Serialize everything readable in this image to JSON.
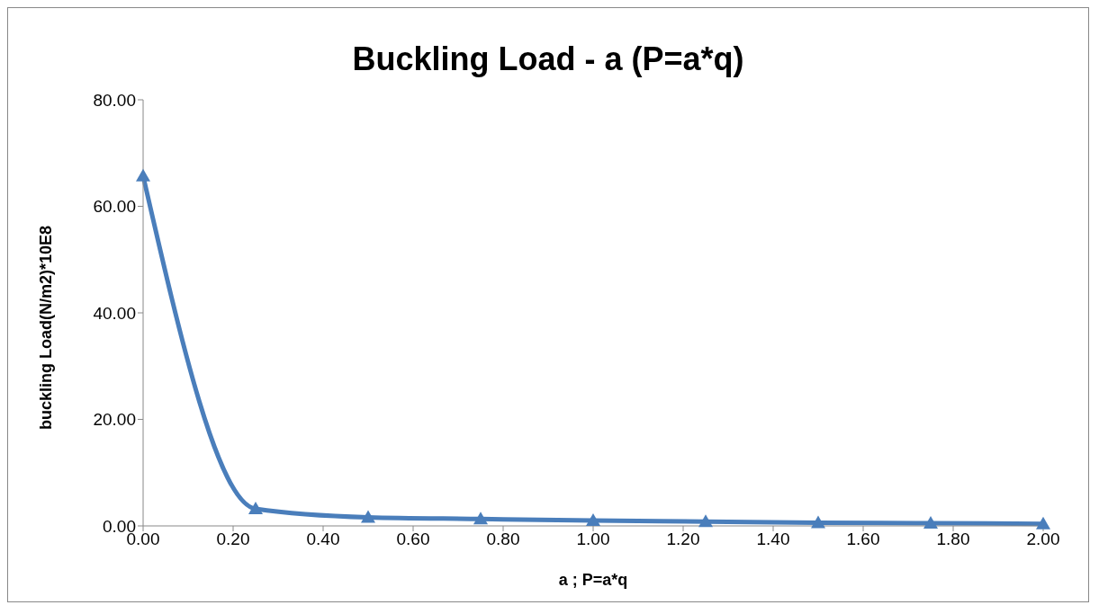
{
  "chart_data": {
    "type": "line",
    "title": "Buckling Load - a (P=a*q)",
    "xlabel": "a ; P=a*q",
    "ylabel": "buckling Load(N/m2)*10E8",
    "x": [
      0,
      0.25,
      0.5,
      0.75,
      1,
      1.25,
      1.5,
      1.75,
      2
    ],
    "series": [
      {
        "color": "#4a7ebb",
        "values": [
          65.7,
          3.2,
          1.6,
          1.3,
          1.0,
          0.8,
          0.6,
          0.5,
          0.4
        ]
      }
    ],
    "xlim": [
      0,
      2
    ],
    "xticks": [
      {
        "value": 0,
        "label": "0.00"
      },
      {
        "value": 0.2,
        "label": "0.20"
      },
      {
        "value": 0.4,
        "label": "0.40"
      },
      {
        "value": 0.6,
        "label": "0.60"
      },
      {
        "value": 0.8,
        "label": "0.80"
      },
      {
        "value": 1,
        "label": "1.00"
      },
      {
        "value": 1.2,
        "label": "1.20"
      },
      {
        "value": 1.4,
        "label": "1.40"
      },
      {
        "value": 1.6,
        "label": "1.60"
      },
      {
        "value": 1.8,
        "label": "1.80"
      },
      {
        "value": 2,
        "label": "2.00"
      }
    ],
    "ylim": [
      0,
      80
    ],
    "yticks": [
      {
        "value": 0,
        "label": "0.00"
      },
      {
        "value": 20,
        "label": "20.00"
      },
      {
        "value": 40,
        "label": "40.00"
      },
      {
        "value": 60,
        "label": "60.00"
      },
      {
        "value": 80,
        "label": "80.00"
      }
    ],
    "grid": false,
    "legend": false,
    "marker": "triangle",
    "line_style": "solid"
  }
}
